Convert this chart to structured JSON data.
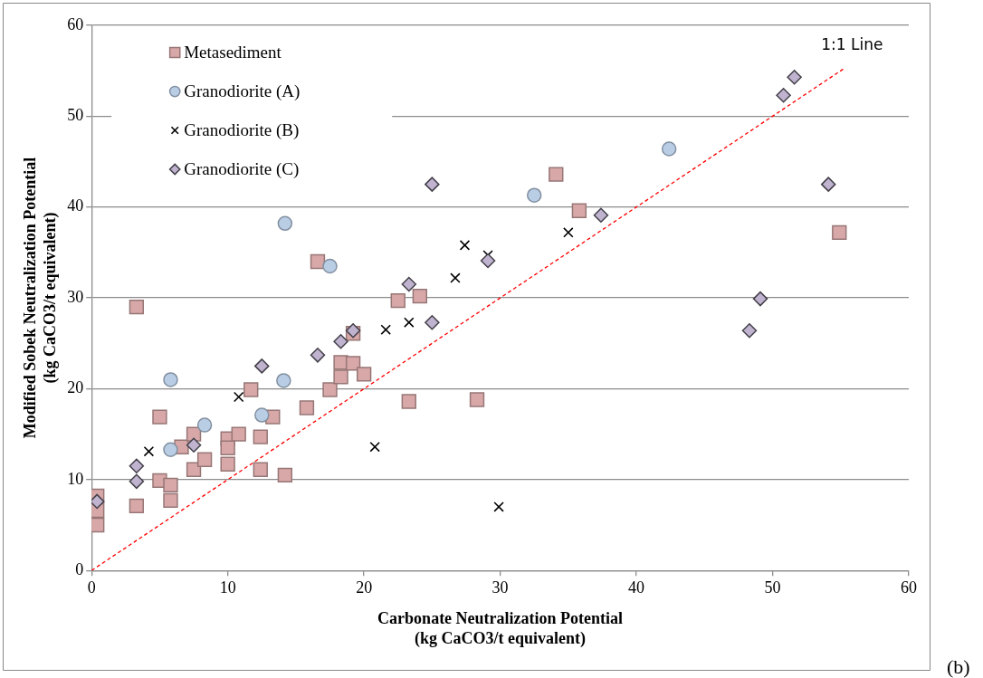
{
  "chart_data": {
    "type": "scatter",
    "xlabel": "Carbonate Neutralization Potential\n(kg CaCO3/t equivalent)",
    "ylabel": "Modified Sobek Neutralization Potential\n(kg CaCO3/t equivalent)",
    "xlim": [
      0,
      60
    ],
    "xticks": [
      0,
      10,
      20,
      30,
      40,
      50,
      60
    ],
    "ylim": [
      0,
      60
    ],
    "yticks": [
      0,
      10,
      20,
      30,
      40,
      50,
      60
    ],
    "grid": "y",
    "legend": "top left",
    "annotations": [
      "(b)"
    ],
    "series": [
      {
        "name": "Metasediment",
        "color": "#d8a8a8",
        "marker": "square",
        "x": [
          0.4,
          0.4,
          0.4,
          3.3,
          3.3,
          5.0,
          5.0,
          5.8,
          5.8,
          6.6,
          7.5,
          7.5,
          8.3,
          10.0,
          10.0,
          10.0,
          10.8,
          11.7,
          12.4,
          12.4,
          13.3,
          14.2,
          15.8,
          16.6,
          17.5,
          18.3,
          18.3,
          19.2,
          19.2,
          20.0,
          22.5,
          23.3,
          24.1,
          28.3,
          34.1,
          35.8,
          54.9
        ],
        "values": [
          8.2,
          6.6,
          5.0,
          29.0,
          7.1,
          16.9,
          9.9,
          9.4,
          7.7,
          13.6,
          15.0,
          11.1,
          12.2,
          14.5,
          13.5,
          11.7,
          15.0,
          19.9,
          14.7,
          11.1,
          16.9,
          10.5,
          17.9,
          34.0,
          19.9,
          22.9,
          21.3,
          22.8,
          26.1,
          21.6,
          29.7,
          18.6,
          30.2,
          18.8,
          43.6,
          39.6,
          37.2
        ]
      },
      {
        "name": "Granodiorite (A)",
        "color": "#b9cde5",
        "marker": "circle",
        "x": [
          5.8,
          5.8,
          8.3,
          12.5,
          14.1,
          14.2,
          17.5,
          32.5,
          42.4
        ],
        "values": [
          21.0,
          13.3,
          16.0,
          17.1,
          20.9,
          38.2,
          33.5,
          41.3,
          46.4
        ]
      },
      {
        "name": "Granodiorite (B)",
        "color": "#000000",
        "marker": "cross",
        "x": [
          4.2,
          10.8,
          20.8,
          21.6,
          23.3,
          26.7,
          27.4,
          29.1,
          29.9,
          35.0
        ],
        "values": [
          13.1,
          19.1,
          13.6,
          26.5,
          27.3,
          32.2,
          35.8,
          34.7,
          7.0,
          37.2
        ]
      },
      {
        "name": "Granodiorite (C)",
        "color": "#bfb3cf",
        "marker": "diamond",
        "x": [
          0.4,
          3.3,
          3.3,
          7.5,
          12.5,
          16.6,
          18.3,
          19.2,
          23.3,
          25.0,
          25.0,
          29.1,
          37.4,
          48.3,
          49.1,
          50.8,
          51.6,
          54.1
        ],
        "values": [
          7.6,
          11.5,
          9.8,
          13.8,
          22.5,
          23.7,
          25.2,
          26.4,
          31.5,
          27.3,
          42.5,
          34.1,
          39.1,
          26.4,
          29.9,
          52.3,
          54.3,
          42.5
        ]
      },
      {
        "type": "line",
        "name": "1:1 Line",
        "color": "#ff0000",
        "line_style": "dashed",
        "marker": "none",
        "x": [
          0,
          55.3
        ],
        "values": [
          0,
          55.3
        ]
      }
    ]
  }
}
